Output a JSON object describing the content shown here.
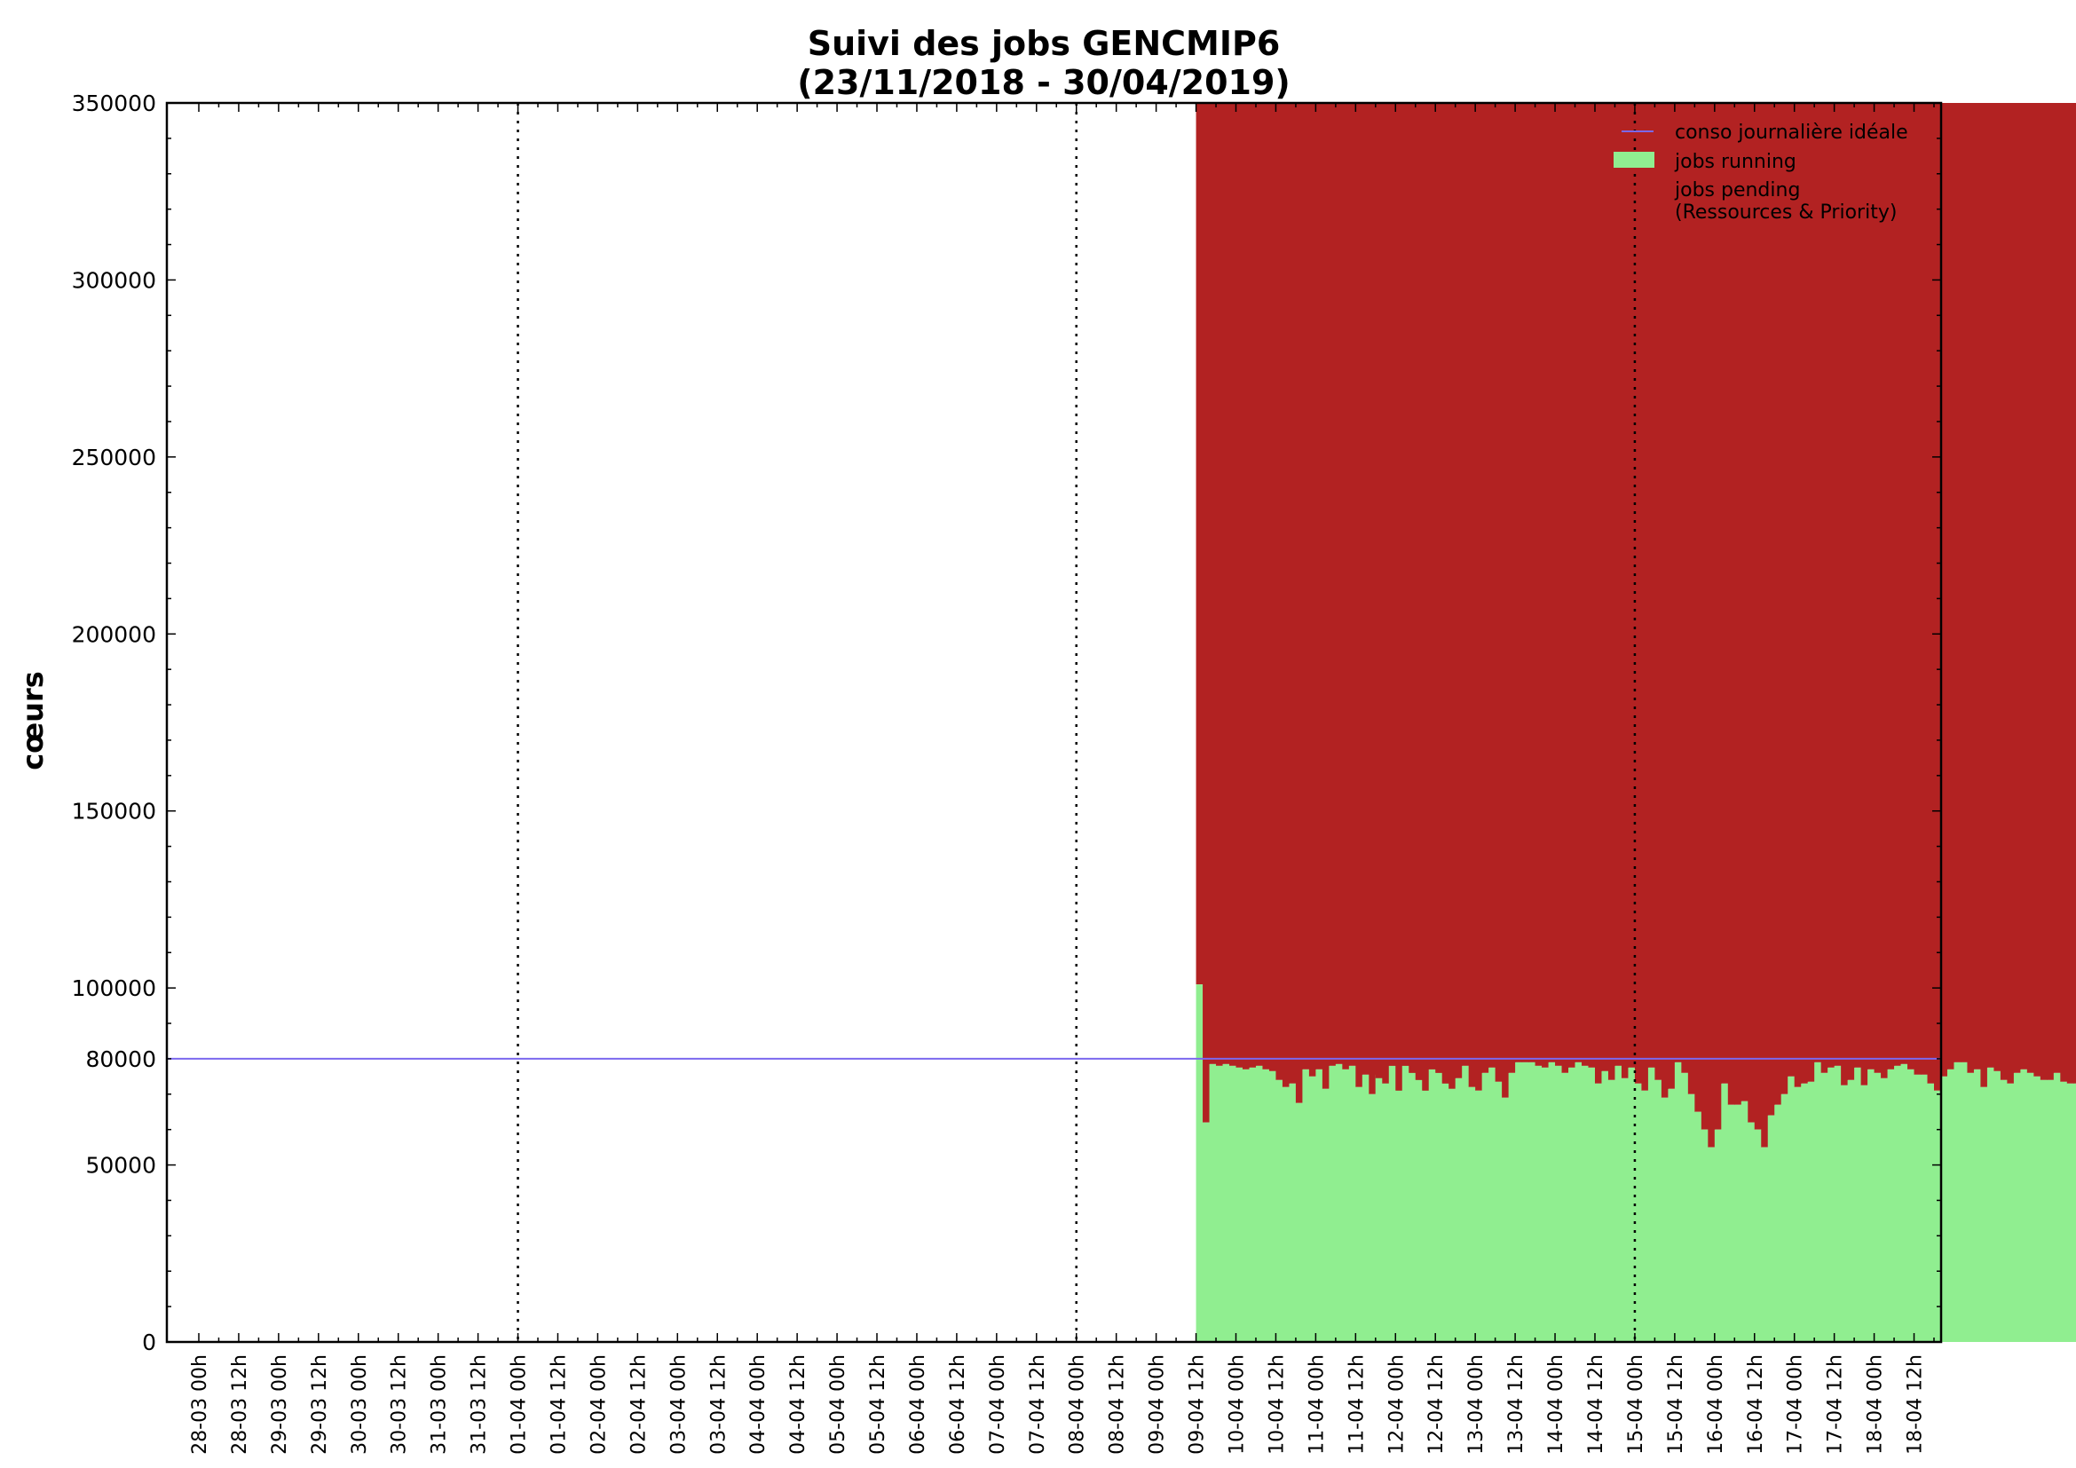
{
  "chart_data": {
    "type": "bar",
    "title": "Suivi des jobs GENCMIP6",
    "subtitle": "(23/11/2018 - 30/04/2019)",
    "xlabel": "",
    "ylabel": "cœurs",
    "ylim": [
      0,
      350000
    ],
    "y_ticks": [
      0,
      50000,
      80000,
      100000,
      150000,
      200000,
      250000,
      300000,
      350000
    ],
    "y_tick_labels": [
      "0",
      "50000",
      "80000",
      "100000",
      "150000",
      "200000",
      "250000",
      "300000",
      "350000"
    ],
    "x_range_hours": [
      "28-03 00h",
      "18-04 18h"
    ],
    "x_tick_labels": [
      "28-03 00h",
      "28-03 12h",
      "29-03 00h",
      "29-03 12h",
      "30-03 00h",
      "30-03 12h",
      "31-03 00h",
      "31-03 12h",
      "01-04 00h",
      "01-04 12h",
      "02-04 00h",
      "02-04 12h",
      "03-04 00h",
      "03-04 12h",
      "04-04 00h",
      "04-04 12h",
      "05-04 00h",
      "05-04 12h",
      "06-04 00h",
      "06-04 12h",
      "07-04 00h",
      "07-04 12h",
      "08-04 00h",
      "08-04 12h",
      "09-04 00h",
      "09-04 12h",
      "10-04 00h",
      "10-04 12h",
      "11-04 00h",
      "11-04 12h",
      "12-04 00h",
      "12-04 12h",
      "13-04 00h",
      "13-04 12h",
      "14-04 00h",
      "14-04 12h",
      "15-04 00h",
      "15-04 12h",
      "16-04 00h",
      "16-04 12h",
      "17-04 00h",
      "17-04 12h",
      "18-04 00h",
      "18-04 12h"
    ],
    "week_markers": [
      "01-04 00h",
      "08-04 00h",
      "15-04 00h"
    ],
    "ideal_daily_consumption": 80000,
    "series": [
      {
        "name": "conso journalière idéale",
        "kind": "line",
        "color": "#7b68ee",
        "value": 80000
      },
      {
        "name": "jobs running",
        "kind": "bar",
        "color": "#90ee90"
      },
      {
        "name": "jobs pending\n(Ressources & Priority)",
        "kind": "bar",
        "color": "#b22222"
      }
    ],
    "running_segments": [
      {
        "start": "09-04 12h",
        "step_hours": 2,
        "values": [
          101000,
          62000,
          78500,
          78000,
          78500,
          78000,
          77500,
          77000,
          77500,
          78000,
          77000,
          76500,
          74000,
          72000,
          73000,
          67500,
          77000,
          75000,
          77000,
          71500,
          78000,
          78500,
          77000,
          78000,
          72000,
          75500,
          70000,
          75500,
          78000,
          77000,
          69000,
          72000,
          71000,
          69000,
          69000,
          75000,
          70000,
          70000,
          72000
        ]
      },
      {
        "start": "11-04 18h",
        "step_hours": 2,
        "values": [
          74500,
          73000,
          78000,
          71000,
          78000,
          76000,
          74000,
          71000,
          77000,
          76000,
          73000,
          71500,
          74500,
          78000,
          72000,
          71000,
          76000,
          77500,
          73500,
          69000,
          76000,
          79000,
          79000,
          79000,
          78000,
          77500,
          79000,
          78000,
          76000,
          77500,
          79000,
          78000,
          77500,
          73000,
          76500,
          74000,
          78000,
          74500,
          77500,
          73000,
          71000,
          77500,
          74000,
          69000,
          71500,
          79000,
          76000,
          70000,
          65000,
          60000,
          55000,
          60000,
          73000,
          67000,
          67000,
          68000,
          62000,
          60000,
          55000,
          64000,
          67000,
          70000,
          75000,
          72000,
          73000,
          73500,
          79000,
          76000,
          77500,
          78000,
          72500,
          74000,
          77500,
          72500,
          77000,
          76000,
          74500,
          77000,
          78000,
          78500,
          77000,
          75500,
          75500,
          73000,
          71000,
          75000,
          77000,
          79000,
          79000,
          76000,
          77000,
          72000,
          77500,
          76500,
          74000,
          73000,
          76000,
          77000,
          76000,
          75000,
          74000,
          74000,
          76000,
          73500,
          73000,
          73000,
          76000,
          76000,
          79000,
          78000,
          75000,
          76000,
          74000,
          75000,
          74000,
          74500,
          74500,
          72000,
          73000,
          76000,
          77000,
          73500,
          73000,
          76000,
          75000,
          77000,
          77000,
          73000,
          71000,
          75000,
          76000,
          75000,
          74000
        ]
      }
    ],
    "pending_top": 350000,
    "legend_position": "top-right",
    "grid": false
  }
}
